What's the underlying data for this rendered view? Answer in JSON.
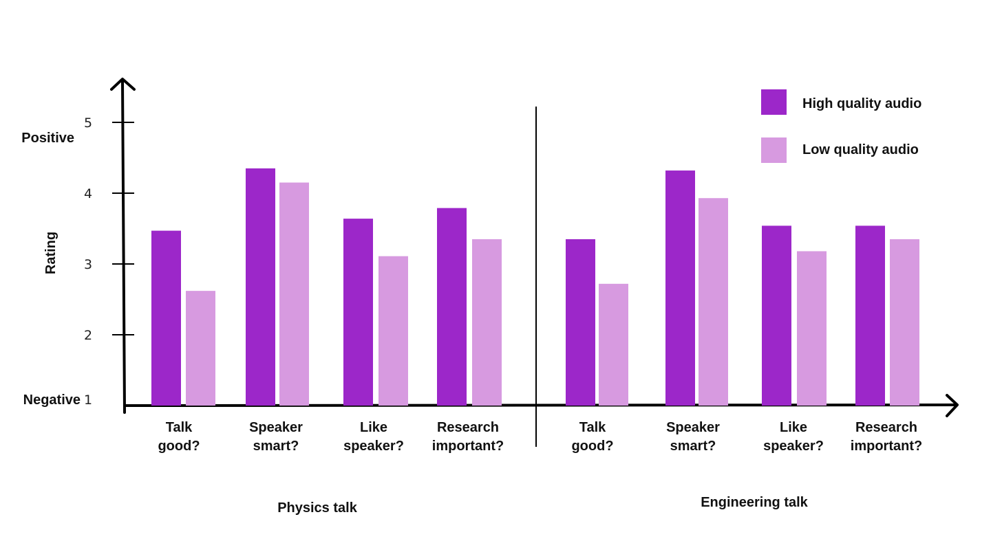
{
  "chart_data": {
    "type": "bar",
    "ylabel": "Rating",
    "ylim": [
      1,
      5
    ],
    "y_ticks": [
      1,
      2,
      3,
      4,
      5
    ],
    "y_end_labels": {
      "low": "Negative",
      "high": "Positive"
    },
    "legend_placement": "top-right",
    "grid": false,
    "colors": {
      "high": "#9c27c9",
      "low": "#d79ae0"
    },
    "series": [
      {
        "name": "High quality audio"
      },
      {
        "name": "Low quality audio"
      }
    ],
    "groups": [
      {
        "name": "Physics talk",
        "categories": [
          [
            "Talk",
            "good?"
          ],
          [
            "Speaker",
            "smart?"
          ],
          [
            "Like",
            "speaker?"
          ],
          [
            "Research",
            "important?"
          ]
        ],
        "high": [
          3.47,
          4.35,
          3.64,
          3.79
        ],
        "low": [
          2.62,
          4.15,
          3.11,
          3.35
        ]
      },
      {
        "name": "Engineering talk",
        "categories": [
          [
            "Talk",
            "good?"
          ],
          [
            "Speaker",
            "smart?"
          ],
          [
            "Like",
            "speaker?"
          ],
          [
            "Research",
            "important?"
          ]
        ],
        "high": [
          3.35,
          4.32,
          3.54,
          3.54
        ],
        "low": [
          2.72,
          3.93,
          3.18,
          3.35
        ]
      }
    ]
  }
}
